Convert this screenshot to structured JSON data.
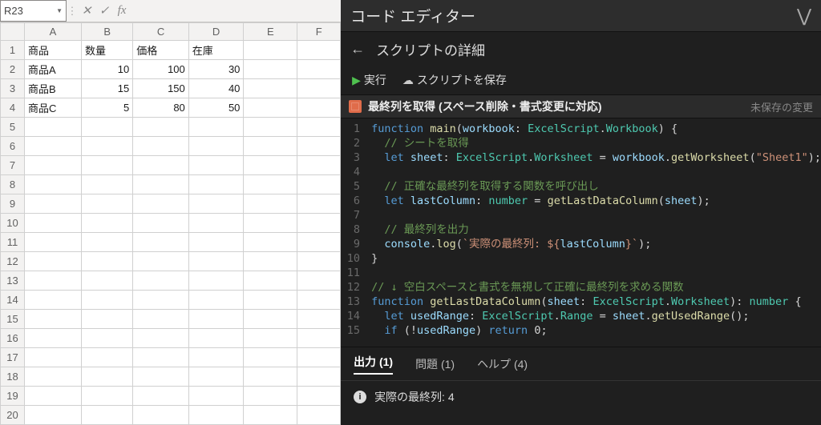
{
  "spreadsheet": {
    "name_box": "R23",
    "formula_value": "",
    "columns": [
      "A",
      "B",
      "C",
      "D",
      "E",
      "F"
    ],
    "row_count": 20,
    "headers": {
      "A": "商品",
      "B": "数量",
      "C": "価格",
      "D": "在庫"
    },
    "data": [
      {
        "A": "商品A",
        "B": "10",
        "C": "100",
        "D": "30"
      },
      {
        "A": "商品B",
        "B": "15",
        "C": "150",
        "D": "40"
      },
      {
        "A": "商品C",
        "B": "5",
        "C": "80",
        "D": "50"
      }
    ],
    "colors": {
      "header_bg": "#f3f2f1",
      "grid": "#d0d0d0",
      "text": "#1b1b1b"
    }
  },
  "editor": {
    "title": "コード エディター",
    "sub_title": "スクリプトの詳細",
    "run_label": "実行",
    "save_label": "スクリプトを保存",
    "script_name": "最終列を取得 (スペース削除・書式変更に対応)",
    "unsaved_label": "未保存の変更",
    "tabs": {
      "output": "出力 (1)",
      "problems": "問題 (1)",
      "help": "ヘルプ (4)"
    },
    "output_text": "実際の最終列: 4",
    "line_count": 15,
    "code_tokens": [
      [
        [
          "kw",
          "function "
        ],
        [
          "fn",
          "main"
        ],
        [
          "pn",
          "("
        ],
        [
          "vr",
          "workbook"
        ],
        [
          "pn",
          ": "
        ],
        [
          "ty",
          "ExcelScript"
        ],
        [
          "pn",
          "."
        ],
        [
          "ty",
          "Workbook"
        ],
        [
          "pn",
          ") {"
        ]
      ],
      [
        [
          "pn",
          "  "
        ],
        [
          "cm",
          "// シートを取得"
        ]
      ],
      [
        [
          "pn",
          "  "
        ],
        [
          "kw",
          "let "
        ],
        [
          "vr",
          "sheet"
        ],
        [
          "pn",
          ": "
        ],
        [
          "ty",
          "ExcelScript"
        ],
        [
          "pn",
          "."
        ],
        [
          "ty",
          "Worksheet"
        ],
        [
          "pn",
          " = "
        ],
        [
          "vr",
          "workbook"
        ],
        [
          "pn",
          "."
        ],
        [
          "fn",
          "getWorksheet"
        ],
        [
          "pn",
          "("
        ],
        [
          "str",
          "\"Sheet1\""
        ],
        [
          "pn",
          ");"
        ]
      ],
      [
        [
          "pn",
          " "
        ]
      ],
      [
        [
          "pn",
          "  "
        ],
        [
          "cm",
          "// 正確な最終列を取得する関数を呼び出し"
        ]
      ],
      [
        [
          "pn",
          "  "
        ],
        [
          "kw",
          "let "
        ],
        [
          "vr",
          "lastColumn"
        ],
        [
          "pn",
          ": "
        ],
        [
          "ty",
          "number"
        ],
        [
          "pn",
          " = "
        ],
        [
          "fn",
          "getLastDataColumn"
        ],
        [
          "pn",
          "("
        ],
        [
          "vr",
          "sheet"
        ],
        [
          "pn",
          ");"
        ]
      ],
      [
        [
          "pn",
          " "
        ]
      ],
      [
        [
          "pn",
          "  "
        ],
        [
          "cm",
          "// 最終列を出力"
        ]
      ],
      [
        [
          "pn",
          "  "
        ],
        [
          "vr",
          "console"
        ],
        [
          "pn",
          "."
        ],
        [
          "fn",
          "log"
        ],
        [
          "pn",
          "("
        ],
        [
          "tpl",
          "`実際の最終列: ${"
        ],
        [
          "vr",
          "lastColumn"
        ],
        [
          "tpl",
          "}`"
        ],
        [
          "pn",
          ");"
        ]
      ],
      [
        [
          "pn",
          "}"
        ]
      ],
      [
        [
          "pn",
          " "
        ]
      ],
      [
        [
          "cm",
          "// ↓ 空白スペースと書式を無視して正確に最終列を求める関数"
        ]
      ],
      [
        [
          "kw",
          "function "
        ],
        [
          "fn",
          "getLastDataColumn"
        ],
        [
          "pn",
          "("
        ],
        [
          "vr",
          "sheet"
        ],
        [
          "pn",
          ": "
        ],
        [
          "ty",
          "ExcelScript"
        ],
        [
          "pn",
          "."
        ],
        [
          "ty",
          "Worksheet"
        ],
        [
          "pn",
          "): "
        ],
        [
          "ty",
          "number"
        ],
        [
          "pn",
          " {"
        ]
      ],
      [
        [
          "pn",
          "  "
        ],
        [
          "kw",
          "let "
        ],
        [
          "vr",
          "usedRange"
        ],
        [
          "pn",
          ": "
        ],
        [
          "ty",
          "ExcelScript"
        ],
        [
          "pn",
          "."
        ],
        [
          "ty",
          "Range"
        ],
        [
          "pn",
          " = "
        ],
        [
          "vr",
          "sheet"
        ],
        [
          "pn",
          "."
        ],
        [
          "fn",
          "getUsedRange"
        ],
        [
          "pn",
          "();"
        ]
      ],
      [
        [
          "pn",
          "  "
        ],
        [
          "kw",
          "if "
        ],
        [
          "pn",
          "(!"
        ],
        [
          "vr",
          "usedRange"
        ],
        [
          "pn",
          ") "
        ],
        [
          "kw",
          "return "
        ],
        [
          "pn",
          "0;"
        ]
      ]
    ],
    "colors": {
      "bg": "#1f1f1f",
      "panel": "#2d2d2d",
      "text": "#d4d4d4",
      "keyword": "#569cd6",
      "function": "#dcdcaa",
      "type": "#4ec9b0",
      "string": "#ce9178",
      "comment": "#6a9955",
      "variable": "#9cdcfe",
      "gutter": "#6a6a6a",
      "run_green": "#4fc14f",
      "script_icon": "#e06c4a"
    }
  }
}
